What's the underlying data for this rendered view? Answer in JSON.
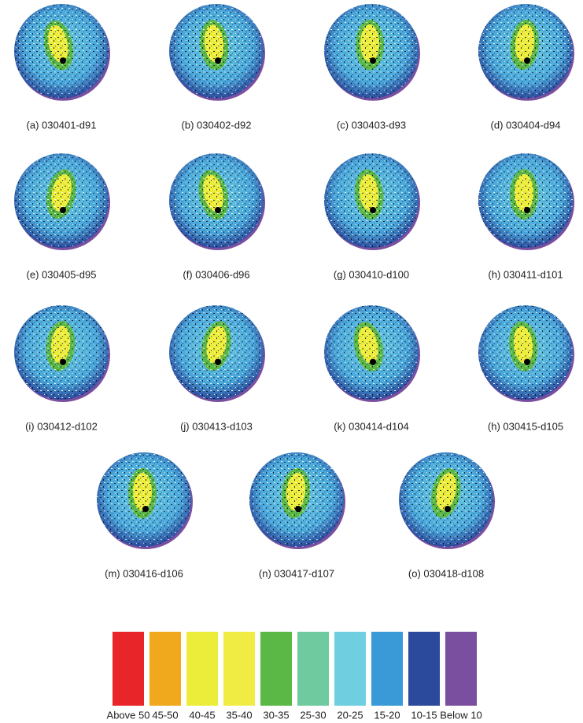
{
  "panels": [
    {
      "label": "(a) 030401-d91"
    },
    {
      "label": "(b) 030402-d92"
    },
    {
      "label": "(c) 030403-d93"
    },
    {
      "label": "(d) 030404-d94"
    },
    {
      "label": "(e) 030405-d95"
    },
    {
      "label": "(f) 030406-d96"
    },
    {
      "label": "(g) 030410-d100"
    },
    {
      "label": "(h) 030411-d101"
    },
    {
      "label": "(i) 030412-d102"
    },
    {
      "label": "(j) 030413-d103"
    },
    {
      "label": "(k) 030414-d104"
    },
    {
      "label": "(h) 030415-d105"
    },
    {
      "label": "(m) 030416-d106"
    },
    {
      "label": "(n) 030417-d107"
    },
    {
      "label": "(o) 030418-d108"
    }
  ],
  "legend": {
    "items": [
      {
        "label": "Above 50",
        "color": "#e8262a"
      },
      {
        "label": "45-50",
        "color": "#f0a81c"
      },
      {
        "label": "40-45",
        "color": "#ecec3a"
      },
      {
        "label": "35-40",
        "color": "#f1ec44"
      },
      {
        "label": "30-35",
        "color": "#5cb846"
      },
      {
        "label": "25-30",
        "color": "#6fcaa0"
      },
      {
        "label": "20-25",
        "color": "#6fcfe0"
      },
      {
        "label": "15-20",
        "color": "#3a9ad8"
      },
      {
        "label": "10-15",
        "color": "#2b4a9c"
      },
      {
        "label": "Below 10",
        "color": "#7b4fa0"
      }
    ]
  }
}
